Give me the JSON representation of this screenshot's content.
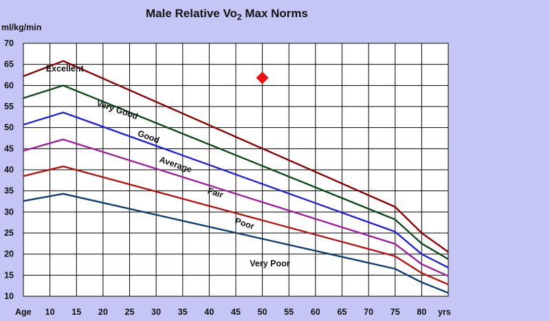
{
  "chart_data": {
    "type": "line",
    "title": "Male Relative Vo",
    "title_subscript": "2",
    "title_suffix": " Max Norms",
    "ylabel": "ml/kg/min",
    "xlabel_start": "Age",
    "xlabel_end": "yrs",
    "x_ticks": [
      10,
      15,
      20,
      25,
      30,
      35,
      40,
      45,
      50,
      55,
      60,
      65,
      70,
      75,
      80
    ],
    "y_ticks": [
      10,
      15,
      20,
      25,
      30,
      35,
      40,
      45,
      50,
      55,
      60,
      65,
      70
    ],
    "xlim": [
      5,
      85
    ],
    "ylim": [
      10,
      70
    ],
    "grid": true,
    "series": [
      {
        "name": "Excellent",
        "color": "#8b0000",
        "x": [
          5,
          12.5,
          75,
          80,
          85
        ],
        "y": [
          62.2,
          65.8,
          31.2,
          25,
          20.5
        ]
      },
      {
        "name": "Very Good",
        "color": "#0b4a16",
        "x": [
          5,
          12.5,
          75,
          80,
          85
        ],
        "y": [
          57,
          60,
          28.2,
          22.5,
          18.8
        ]
      },
      {
        "name": "Good",
        "color": "#2222dd",
        "x": [
          5,
          12.5,
          75,
          80,
          85
        ],
        "y": [
          50.7,
          53.6,
          25.3,
          20,
          16.8
        ]
      },
      {
        "name": "Average",
        "color": "#a01ea0",
        "x": [
          5,
          12.5,
          75,
          80,
          85
        ],
        "y": [
          44.5,
          47.2,
          22.4,
          17.6,
          14.8
        ]
      },
      {
        "name": "Fair",
        "color": "#bb1111",
        "x": [
          5,
          12.5,
          75,
          80,
          85
        ],
        "y": [
          38.5,
          40.8,
          19.5,
          15.5,
          12.8
        ]
      },
      {
        "name": "Poor",
        "color": "#0b3d73",
        "x": [
          5,
          12.5,
          75,
          80,
          85
        ],
        "y": [
          32.6,
          34.3,
          16.5,
          13.3,
          10.8
        ]
      }
    ],
    "band_labels": [
      {
        "text": "Excellent",
        "x": 12.8,
        "y": 63.3,
        "angle": 0
      },
      {
        "text": "Very Good",
        "x": 22.5,
        "y": 53.6,
        "angle": 19
      },
      {
        "text": "Good",
        "x": 28.4,
        "y": 47.2,
        "angle": 20
      },
      {
        "text": "Average",
        "x": 33.5,
        "y": 40.6,
        "angle": 19
      },
      {
        "text": "Fair",
        "x": 41,
        "y": 33.9,
        "angle": 18
      },
      {
        "text": "Poor",
        "x": 46.5,
        "y": 26.6,
        "angle": 18
      },
      {
        "text": "Very Poor",
        "x": 51.4,
        "y": 17.1,
        "angle": 0
      }
    ],
    "marker": {
      "shape": "diamond",
      "color": "#ee1111",
      "x": 50,
      "y": 61.8
    }
  }
}
